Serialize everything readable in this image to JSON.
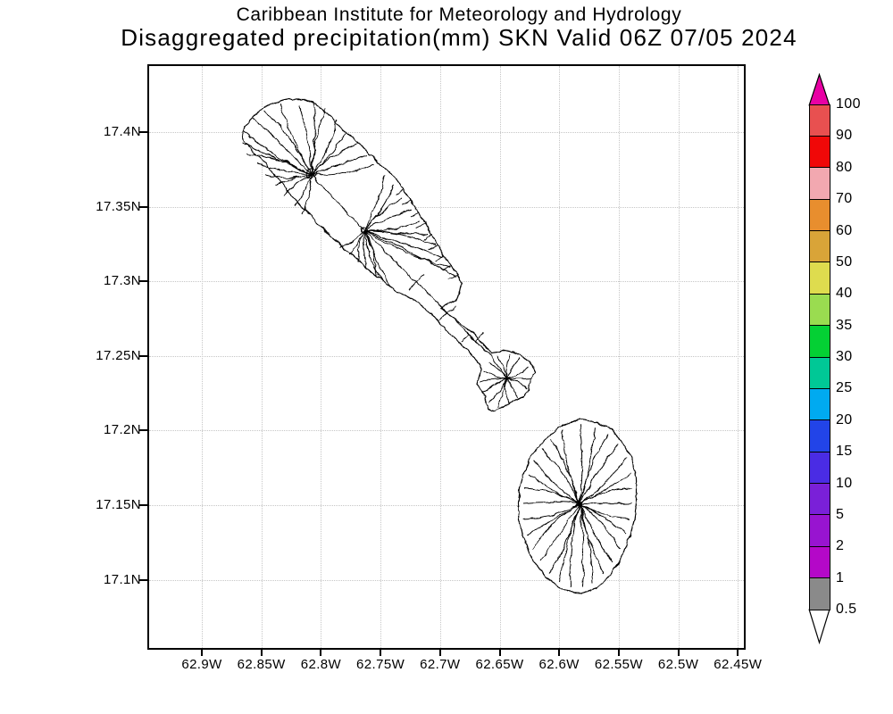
{
  "title": {
    "line1": "Caribbean Institute for Meteorology and Hydrology",
    "line2": "Disaggregated precipitation(mm) SKN Valid 06Z 07/05 2024"
  },
  "map": {
    "lat_tick_labels": [
      "17.4N",
      "17.35N",
      "17.3N",
      "17.25N",
      "17.2N",
      "17.15N",
      "17.1N"
    ],
    "lon_tick_labels": [
      "62.9W",
      "62.85W",
      "62.8W",
      "62.75W",
      "62.7W",
      "62.65W",
      "62.6W",
      "62.55W",
      "62.5W",
      "62.45W"
    ],
    "grid_color": "#c6c6c6",
    "frame_color": "#000000",
    "land_fill": "#ffffff",
    "outline_color": "#000000"
  },
  "colorbar": {
    "unit": "mm",
    "tick_labels": [
      "100",
      "90",
      "80",
      "70",
      "60",
      "50",
      "40",
      "35",
      "30",
      "25",
      "20",
      "15",
      "10",
      "5",
      "2",
      "1",
      "0.5"
    ],
    "cells": [
      {
        "range": "90-100",
        "color": "#E85050"
      },
      {
        "range": "80-90",
        "color": "#F00808"
      },
      {
        "range": "70-80",
        "color": "#F2A8B0"
      },
      {
        "range": "60-70",
        "color": "#E88E2E"
      },
      {
        "range": "50-60",
        "color": "#D9A438"
      },
      {
        "range": "40-50",
        "color": "#DEDC4E"
      },
      {
        "range": "35-40",
        "color": "#9ADC50"
      },
      {
        "range": "30-35",
        "color": "#04D034"
      },
      {
        "range": "25-30",
        "color": "#00C896"
      },
      {
        "range": "20-25",
        "color": "#00AAF0"
      },
      {
        "range": "15-20",
        "color": "#2244E8"
      },
      {
        "range": "10-15",
        "color": "#4A2CE4"
      },
      {
        "range": "5-10",
        "color": "#7A20D8"
      },
      {
        "range": "2-5",
        "color": "#9814D0"
      },
      {
        "range": "1-2",
        "color": "#B408C8"
      },
      {
        "range": "0.5-1",
        "color": "#8A8A8A"
      }
    ],
    "over_arrow_color": "#E800A4",
    "under_arrow_color": "#FFFFFF"
  }
}
